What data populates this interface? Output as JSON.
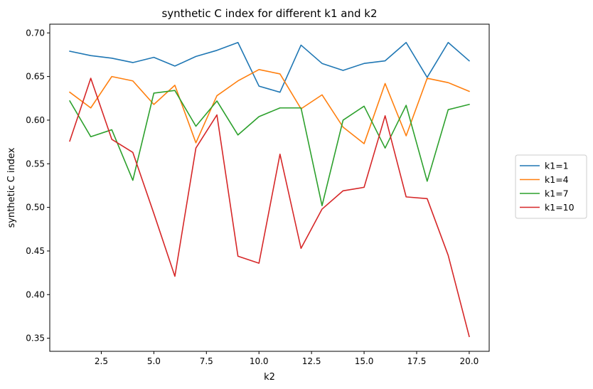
{
  "chart_data": {
    "type": "line",
    "title": "synthetic C index for different k1 and k2",
    "xlabel": "k2",
    "ylabel": "synthetic C index",
    "xlim": [
      0.05,
      20.95
    ],
    "ylim": [
      0.335,
      0.71
    ],
    "xticks": [
      "2.5",
      "5.0",
      "7.5",
      "10.0",
      "12.5",
      "15.0",
      "17.5",
      "20.0"
    ],
    "yticks": [
      "0.35",
      "0.40",
      "0.45",
      "0.50",
      "0.55",
      "0.60",
      "0.65",
      "0.70"
    ],
    "x": [
      1,
      2,
      3,
      4,
      5,
      6,
      7,
      8,
      9,
      10,
      11,
      12,
      13,
      14,
      15,
      16,
      17,
      18,
      19,
      20
    ],
    "grid": false,
    "legend_position": "right",
    "series": [
      {
        "name": "k1=1",
        "color": "#1f77b4",
        "values": [
          0.679,
          0.674,
          0.671,
          0.666,
          0.672,
          0.662,
          0.673,
          0.68,
          0.689,
          0.639,
          0.632,
          0.686,
          0.665,
          0.657,
          0.665,
          0.668,
          0.689,
          0.649,
          0.689,
          0.668
        ]
      },
      {
        "name": "k1=4",
        "color": "#ff7f0e",
        "values": [
          0.632,
          0.614,
          0.65,
          0.645,
          0.618,
          0.64,
          0.574,
          0.628,
          0.645,
          0.658,
          0.653,
          0.613,
          0.629,
          0.592,
          0.573,
          0.642,
          0.582,
          0.648,
          0.643,
          0.633
        ]
      },
      {
        "name": "k1=7",
        "color": "#2ca02c",
        "values": [
          0.622,
          0.581,
          0.589,
          0.531,
          0.631,
          0.634,
          0.593,
          0.622,
          0.583,
          0.604,
          0.614,
          0.614,
          0.502,
          0.6,
          0.616,
          0.568,
          0.617,
          0.53,
          0.612,
          0.618
        ]
      },
      {
        "name": "k1=10",
        "color": "#d62728",
        "values": [
          0.576,
          0.648,
          0.578,
          0.563,
          0.493,
          0.421,
          0.568,
          0.606,
          0.444,
          0.436,
          0.561,
          0.453,
          0.498,
          0.519,
          0.523,
          0.605,
          0.512,
          0.51,
          0.445,
          0.352
        ]
      }
    ]
  }
}
